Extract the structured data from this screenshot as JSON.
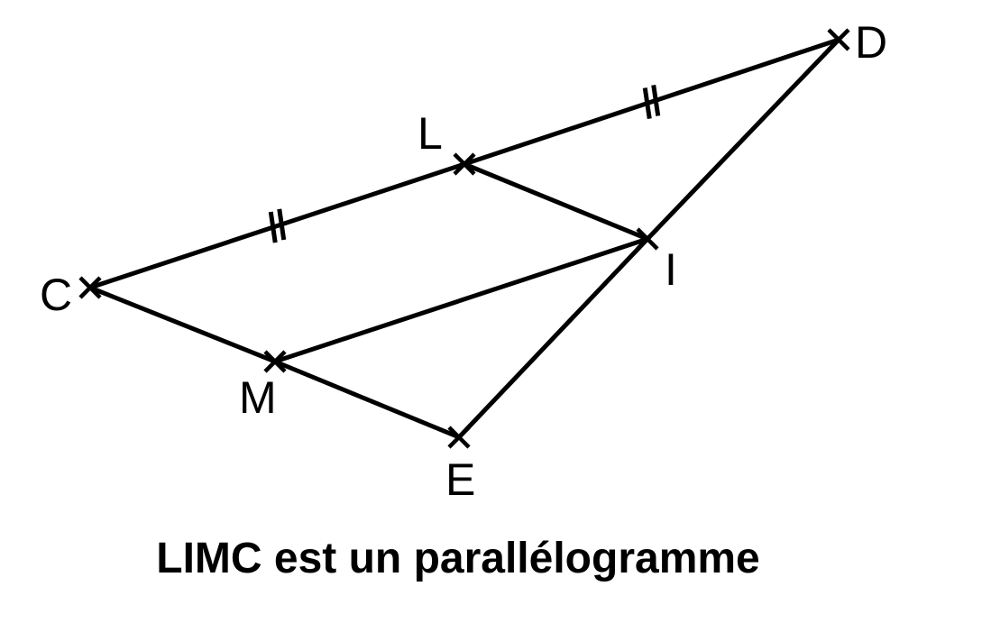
{
  "points": [
    {
      "id": "C",
      "label": "C"
    },
    {
      "id": "L",
      "label": "L"
    },
    {
      "id": "D",
      "label": "D"
    },
    {
      "id": "I",
      "label": "I"
    },
    {
      "id": "M",
      "label": "M"
    },
    {
      "id": "E",
      "label": "E"
    }
  ],
  "segments": [
    [
      "C",
      "L"
    ],
    [
      "L",
      "D"
    ],
    [
      "L",
      "I"
    ],
    [
      "C",
      "M"
    ],
    [
      "M",
      "E"
    ],
    [
      "M",
      "I"
    ],
    [
      "E",
      "I"
    ],
    [
      "I",
      "D"
    ]
  ],
  "equal_length_marks": {
    "style": "double-tick",
    "segments": [
      [
        "C",
        "L"
      ],
      [
        "L",
        "D"
      ]
    ]
  },
  "caption": "LIMC est un parallélogramme"
}
